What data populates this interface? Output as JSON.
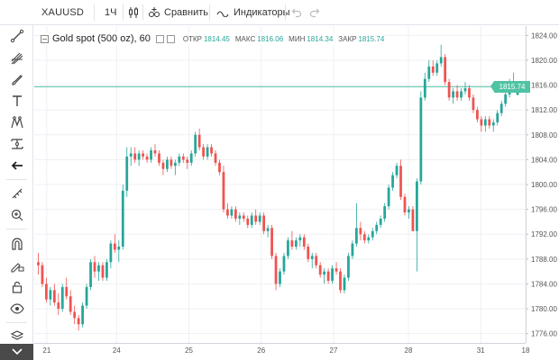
{
  "toolbar": {
    "symbol": "XAUUSD",
    "interval": "1Ч",
    "compare_label": "Сравнить",
    "indicators_label": "Индикаторы",
    "undo_icon": "undo-icon",
    "redo_icon": "redo-icon"
  },
  "left_toolbar": {
    "tools": [
      "crosshair-icon",
      "trend-line-icon",
      "pitchfork-icon",
      "brush-icon",
      "text-icon",
      "pattern-icon",
      "measure-icon",
      "back-arrow-icon",
      "ruler-icon",
      "zoom-in-icon",
      "magnet-icon",
      "lock-drawing-icon",
      "lock-icon",
      "eye-icon",
      "layers-icon",
      "chevron-down-icon"
    ]
  },
  "legend": {
    "title": "Gold spot (500 oz), 60",
    "open_label": "ОТКР",
    "open_value": "1814.45",
    "high_label": "МАКС",
    "high_value": "1816.06",
    "low_label": "МИН",
    "low_value": "1814.34",
    "close_label": "ЗАКР",
    "close_value": "1815.74"
  },
  "last_price": "1815.74",
  "colors": {
    "up": "#26a69a",
    "down": "#ef5350",
    "price_line": "#4fc3a4",
    "grid": "#eef0f3"
  },
  "chart_data": {
    "type": "candlestick",
    "y_ticks": [
      1776,
      1780,
      1784,
      1788,
      1792,
      1796,
      1800,
      1804,
      1808,
      1812,
      1816,
      1820,
      1824
    ],
    "ylim": [
      1774.5,
      1825.5
    ],
    "x_ticks": [
      "21",
      "24",
      "25",
      "26",
      "27",
      "28",
      "31",
      "18"
    ],
    "x_tick_positions": [
      5,
      33,
      62,
      91,
      120,
      150,
      179,
      197
    ],
    "last_price": 1815.74,
    "candles": [
      [
        1787.5,
        1789.0,
        1785.5,
        1787.0
      ],
      [
        1787.0,
        1787.5,
        1783.5,
        1784.0
      ],
      [
        1784.0,
        1785.0,
        1781.0,
        1781.5
      ],
      [
        1781.5,
        1783.5,
        1780.5,
        1783.0
      ],
      [
        1783.0,
        1784.0,
        1780.5,
        1781.0
      ],
      [
        1781.0,
        1782.5,
        1779.0,
        1780.0
      ],
      [
        1780.0,
        1784.0,
        1779.5,
        1783.5
      ],
      [
        1783.5,
        1785.0,
        1781.5,
        1782.0
      ],
      [
        1782.0,
        1783.0,
        1779.0,
        1779.5
      ],
      [
        1779.5,
        1780.5,
        1777.5,
        1778.5
      ],
      [
        1778.5,
        1779.0,
        1776.5,
        1777.5
      ],
      [
        1777.5,
        1781.0,
        1777.0,
        1780.5
      ],
      [
        1780.5,
        1784.0,
        1780.0,
        1783.5
      ],
      [
        1783.5,
        1788.0,
        1783.0,
        1787.5
      ],
      [
        1787.5,
        1788.5,
        1785.0,
        1786.0
      ],
      [
        1786.0,
        1787.5,
        1784.5,
        1787.0
      ],
      [
        1787.0,
        1787.5,
        1784.5,
        1785.0
      ],
      [
        1785.0,
        1788.0,
        1784.5,
        1787.5
      ],
      [
        1787.5,
        1791.0,
        1786.5,
        1790.5
      ],
      [
        1790.5,
        1792.0,
        1789.0,
        1789.5
      ],
      [
        1789.5,
        1791.0,
        1787.5,
        1790.0
      ],
      [
        1790.0,
        1800.0,
        1789.5,
        1799.0
      ],
      [
        1799.0,
        1806.0,
        1798.0,
        1804.5
      ],
      [
        1804.5,
        1806.0,
        1803.0,
        1805.0
      ],
      [
        1805.0,
        1806.0,
        1803.5,
        1804.0
      ],
      [
        1804.0,
        1805.5,
        1803.0,
        1805.0
      ],
      [
        1805.0,
        1805.5,
        1804.0,
        1804.5
      ],
      [
        1804.5,
        1805.0,
        1803.5,
        1804.0
      ],
      [
        1804.0,
        1806.0,
        1803.5,
        1805.5
      ],
      [
        1805.5,
        1806.5,
        1804.5,
        1805.0
      ],
      [
        1805.0,
        1805.5,
        1803.0,
        1803.5
      ],
      [
        1803.5,
        1804.0,
        1801.5,
        1802.5
      ],
      [
        1802.5,
        1804.5,
        1802.0,
        1804.0
      ],
      [
        1804.0,
        1804.5,
        1802.5,
        1803.0
      ],
      [
        1803.0,
        1804.0,
        1801.5,
        1803.5
      ],
      [
        1803.5,
        1805.0,
        1803.0,
        1804.5
      ],
      [
        1804.5,
        1805.0,
        1803.5,
        1804.0
      ],
      [
        1804.0,
        1804.5,
        1802.5,
        1803.5
      ],
      [
        1803.5,
        1805.5,
        1803.0,
        1805.0
      ],
      [
        1805.0,
        1808.5,
        1804.5,
        1808.0
      ],
      [
        1808.0,
        1809.0,
        1805.5,
        1806.0
      ],
      [
        1806.0,
        1806.5,
        1804.0,
        1804.5
      ],
      [
        1804.5,
        1806.5,
        1804.0,
        1806.0
      ],
      [
        1806.0,
        1806.5,
        1804.5,
        1805.0
      ],
      [
        1805.0,
        1805.5,
        1803.0,
        1803.5
      ],
      [
        1803.5,
        1804.0,
        1801.5,
        1802.0
      ],
      [
        1802.0,
        1803.0,
        1795.5,
        1796.0
      ],
      [
        1796.0,
        1797.0,
        1794.5,
        1795.0
      ],
      [
        1795.0,
        1796.5,
        1794.5,
        1796.0
      ],
      [
        1796.0,
        1796.5,
        1794.0,
        1794.5
      ],
      [
        1794.5,
        1795.5,
        1793.5,
        1795.0
      ],
      [
        1795.0,
        1795.5,
        1794.0,
        1794.5
      ],
      [
        1794.5,
        1795.0,
        1793.0,
        1793.5
      ],
      [
        1793.5,
        1795.5,
        1793.0,
        1795.0
      ],
      [
        1795.0,
        1796.0,
        1793.5,
        1794.0
      ],
      [
        1794.0,
        1795.5,
        1793.5,
        1795.0
      ],
      [
        1795.0,
        1795.5,
        1792.0,
        1792.5
      ],
      [
        1792.5,
        1793.5,
        1791.5,
        1793.0
      ],
      [
        1793.0,
        1793.5,
        1788.0,
        1788.5
      ],
      [
        1788.5,
        1789.0,
        1783.0,
        1784.0
      ],
      [
        1784.0,
        1786.5,
        1783.5,
        1786.0
      ],
      [
        1786.0,
        1789.0,
        1785.5,
        1788.5
      ],
      [
        1788.5,
        1791.5,
        1788.0,
        1791.0
      ],
      [
        1791.0,
        1792.5,
        1789.5,
        1790.0
      ],
      [
        1790.0,
        1791.5,
        1789.5,
        1791.0
      ],
      [
        1791.0,
        1792.0,
        1790.0,
        1791.5
      ],
      [
        1791.5,
        1792.0,
        1789.5,
        1790.0
      ],
      [
        1790.0,
        1790.5,
        1787.5,
        1788.0
      ],
      [
        1788.0,
        1789.0,
        1786.5,
        1788.5
      ],
      [
        1788.5,
        1789.0,
        1786.5,
        1787.0
      ],
      [
        1787.0,
        1787.5,
        1785.0,
        1785.5
      ],
      [
        1785.5,
        1786.5,
        1784.0,
        1786.0
      ],
      [
        1786.0,
        1786.5,
        1784.0,
        1784.5
      ],
      [
        1784.5,
        1787.0,
        1784.0,
        1786.5
      ],
      [
        1786.5,
        1787.5,
        1785.5,
        1786.0
      ],
      [
        1786.0,
        1786.5,
        1782.5,
        1783.0
      ],
      [
        1783.0,
        1785.5,
        1782.5,
        1785.0
      ],
      [
        1785.0,
        1789.0,
        1784.5,
        1788.5
      ],
      [
        1788.5,
        1791.0,
        1788.0,
        1790.5
      ],
      [
        1790.5,
        1797.0,
        1790.0,
        1793.0
      ],
      [
        1793.0,
        1794.0,
        1791.0,
        1792.0
      ],
      [
        1792.0,
        1792.5,
        1790.5,
        1791.0
      ],
      [
        1791.0,
        1792.0,
        1790.5,
        1791.5
      ],
      [
        1791.5,
        1793.0,
        1791.0,
        1792.5
      ],
      [
        1792.5,
        1794.0,
        1792.0,
        1793.5
      ],
      [
        1793.5,
        1795.0,
        1793.0,
        1794.5
      ],
      [
        1794.5,
        1797.0,
        1794.0,
        1796.5
      ],
      [
        1796.5,
        1800.0,
        1796.0,
        1799.5
      ],
      [
        1799.5,
        1802.0,
        1799.0,
        1801.5
      ],
      [
        1801.5,
        1803.5,
        1801.0,
        1803.0
      ],
      [
        1803.0,
        1804.0,
        1797.5,
        1798.0
      ],
      [
        1798.0,
        1798.5,
        1795.0,
        1795.5
      ],
      [
        1795.5,
        1796.5,
        1794.5,
        1796.0
      ],
      [
        1796.0,
        1796.5,
        1792.5,
        1792.5
      ],
      [
        1792.5,
        1801.0,
        1786.0,
        1800.5
      ],
      [
        1800.5,
        1815.0,
        1800.0,
        1814.0
      ],
      [
        1814.0,
        1818.0,
        1813.5,
        1817.0
      ],
      [
        1817.0,
        1820.0,
        1816.5,
        1819.0
      ],
      [
        1819.0,
        1820.0,
        1817.5,
        1818.0
      ],
      [
        1818.0,
        1820.0,
        1817.5,
        1819.5
      ],
      [
        1819.5,
        1822.5,
        1819.0,
        1820.5
      ],
      [
        1820.5,
        1821.0,
        1816.0,
        1816.5
      ],
      [
        1816.5,
        1817.0,
        1813.5,
        1814.0
      ],
      [
        1814.0,
        1815.5,
        1813.0,
        1815.0
      ],
      [
        1815.0,
        1816.0,
        1813.5,
        1814.0
      ],
      [
        1814.0,
        1815.5,
        1813.5,
        1815.0
      ],
      [
        1815.0,
        1816.5,
        1814.5,
        1815.5
      ],
      [
        1815.5,
        1816.0,
        1813.5,
        1814.0
      ],
      [
        1814.0,
        1814.5,
        1811.5,
        1812.0
      ],
      [
        1812.0,
        1812.5,
        1810.0,
        1810.5
      ],
      [
        1810.5,
        1811.0,
        1808.5,
        1809.5
      ],
      [
        1809.5,
        1811.0,
        1808.5,
        1810.5
      ],
      [
        1810.5,
        1811.0,
        1809.0,
        1809.5
      ],
      [
        1809.5,
        1810.5,
        1808.5,
        1810.0
      ],
      [
        1810.0,
        1812.0,
        1809.5,
        1811.5
      ],
      [
        1811.5,
        1813.5,
        1811.0,
        1813.0
      ],
      [
        1813.0,
        1815.0,
        1812.5,
        1814.5
      ],
      [
        1814.5,
        1817.0,
        1814.0,
        1816.5
      ],
      [
        1816.5,
        1818.0,
        1815.0,
        1815.5
      ],
      [
        1814.45,
        1816.06,
        1814.34,
        1815.74
      ]
    ]
  }
}
